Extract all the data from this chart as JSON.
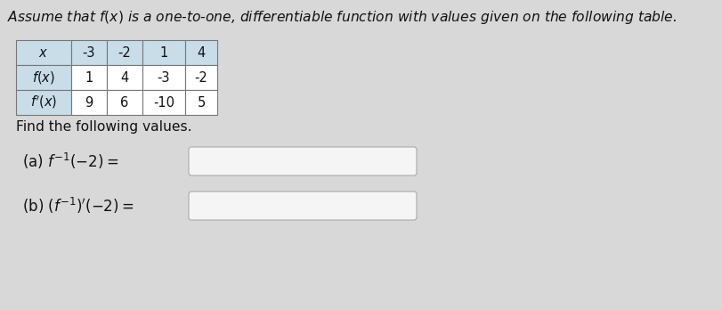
{
  "title": "Assume that $f(x)$ is a one-to-one, differentiable function with values given on the following table.",
  "col_headers": [
    "-3",
    "-2",
    "1",
    "4"
  ],
  "row_labels": [
    "$x$",
    "$f(x)$",
    "$f'(x)$"
  ],
  "table_data": [
    [
      "-3",
      "-2",
      "1",
      "4"
    ],
    [
      "1",
      "4",
      "-3",
      "-2"
    ],
    [
      "9",
      "6",
      "-10",
      "5"
    ]
  ],
  "find_text": "Find the following values.",
  "part_a_label": "(a) $f^{-1}(-2) = $",
  "part_b_label": "(b) $(f^{-1})'(-2) = $",
  "bg_color": "#d8d8d8",
  "table_label_bg": "#c8dde8",
  "table_cell_bg": "#ffffff",
  "table_border_color": "#777777",
  "input_box_bg": "#f5f5f5",
  "input_box_border": "#aaaaaa",
  "text_color": "#111111"
}
